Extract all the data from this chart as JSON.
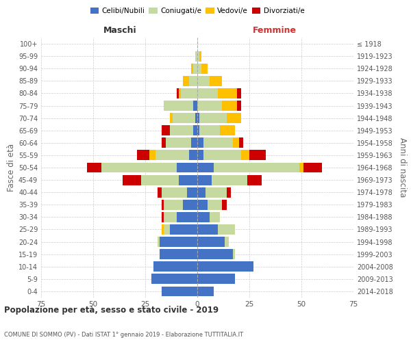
{
  "age_groups": [
    "0-4",
    "5-9",
    "10-14",
    "15-19",
    "20-24",
    "25-29",
    "30-34",
    "35-39",
    "40-44",
    "45-49",
    "50-54",
    "55-59",
    "60-64",
    "65-69",
    "70-74",
    "75-79",
    "80-84",
    "85-89",
    "90-94",
    "95-99",
    "100+"
  ],
  "birth_years": [
    "2014-2018",
    "2009-2013",
    "2004-2008",
    "1999-2003",
    "1994-1998",
    "1989-1993",
    "1984-1988",
    "1979-1983",
    "1974-1978",
    "1969-1973",
    "1964-1968",
    "1959-1963",
    "1954-1958",
    "1949-1953",
    "1944-1948",
    "1939-1943",
    "1934-1938",
    "1929-1933",
    "1924-1928",
    "1919-1923",
    "≤ 1918"
  ],
  "males": {
    "celibi": [
      17,
      22,
      21,
      18,
      18,
      13,
      10,
      7,
      5,
      9,
      10,
      4,
      3,
      2,
      1,
      2,
      0,
      0,
      0,
      0,
      0
    ],
    "coniugati": [
      0,
      0,
      0,
      0,
      1,
      3,
      6,
      9,
      12,
      18,
      36,
      16,
      12,
      11,
      11,
      14,
      8,
      4,
      2,
      1,
      0
    ],
    "vedovi": [
      0,
      0,
      0,
      0,
      0,
      1,
      0,
      0,
      0,
      0,
      0,
      3,
      0,
      0,
      1,
      0,
      1,
      3,
      1,
      0,
      0
    ],
    "divorziati": [
      0,
      0,
      0,
      0,
      0,
      0,
      1,
      1,
      2,
      9,
      7,
      6,
      2,
      4,
      0,
      0,
      1,
      0,
      0,
      0,
      0
    ]
  },
  "females": {
    "nubili": [
      8,
      18,
      27,
      17,
      13,
      10,
      6,
      5,
      4,
      7,
      8,
      3,
      3,
      1,
      1,
      0,
      0,
      0,
      0,
      0,
      0
    ],
    "coniugate": [
      0,
      0,
      0,
      1,
      2,
      8,
      5,
      7,
      10,
      17,
      41,
      18,
      14,
      10,
      13,
      12,
      10,
      6,
      2,
      1,
      0
    ],
    "vedove": [
      0,
      0,
      0,
      0,
      0,
      0,
      0,
      0,
      0,
      0,
      2,
      4,
      3,
      7,
      7,
      7,
      9,
      6,
      3,
      1,
      0
    ],
    "divorziate": [
      0,
      0,
      0,
      0,
      0,
      0,
      0,
      2,
      2,
      7,
      9,
      8,
      2,
      0,
      0,
      2,
      2,
      0,
      0,
      0,
      0
    ]
  },
  "colors": {
    "celibi": "#4472c4",
    "coniugati": "#c5d9a0",
    "vedovi": "#ffc000",
    "divorziati": "#cc0000"
  },
  "title": "Popolazione per età, sesso e stato civile - 2019",
  "subtitle": "COMUNE DI SOMMO (PV) - Dati ISTAT 1° gennaio 2019 - Elaborazione TUTTITALIA.IT",
  "ylabel_left": "Fasce di età",
  "ylabel_right": "Anni di nascita",
  "xlabel_left": "Maschi",
  "xlabel_right": "Femmine",
  "xlim": 75,
  "legend_labels": [
    "Celibi/Nubili",
    "Coniugati/e",
    "Vedovi/e",
    "Divorziati/e"
  ],
  "background_color": "#ffffff",
  "grid_color": "#cccccc"
}
